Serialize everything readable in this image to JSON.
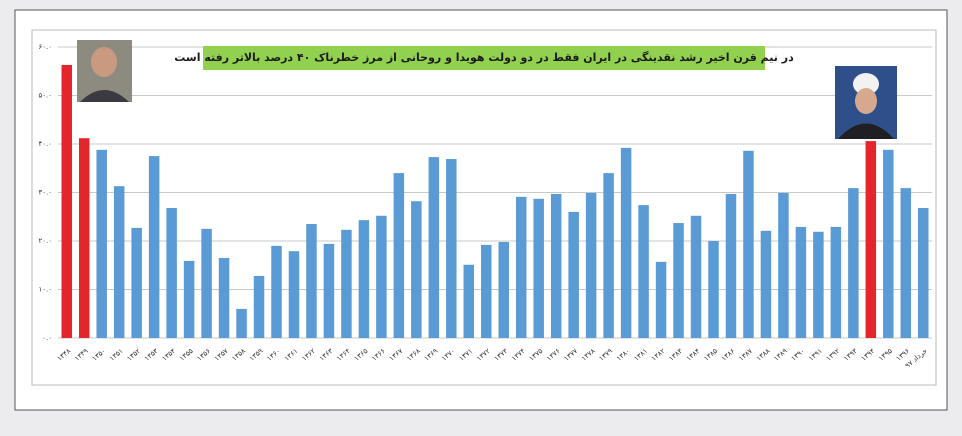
{
  "chart_data": {
    "type": "bar",
    "title": "در نیم قرن اخیر رشد نقدینگی در ایران فقط در دو دولت هویدا و روحانی از مرز خطرناک ۴۰ درصد بالاتر رفته است",
    "categories": [
      "۱۳۴۸",
      "۱۳۴۹",
      "۱۳۵۰",
      "۱۳۵۱",
      "۱۳۵۲",
      "۱۳۵۳",
      "۱۳۵۴",
      "۱۳۵۵",
      "۱۳۵۶",
      "۱۳۵۷",
      "۱۳۵۸",
      "۱۳۵۹",
      "۱۳۶۰",
      "۱۳۶۱",
      "۱۳۶۲",
      "۱۳۶۳",
      "۱۳۶۴",
      "۱۳۶۵",
      "۱۳۶۶",
      "۱۳۶۷",
      "۱۳۶۸",
      "۱۳۶۹",
      "۱۳۷۰",
      "۱۳۷۱",
      "۱۳۷۲",
      "۱۳۷۳",
      "۱۳۷۴",
      "۱۳۷۵",
      "۱۳۷۶",
      "۱۳۷۷",
      "۱۳۷۸",
      "۱۳۷۹",
      "۱۳۸۰",
      "۱۳۸۱",
      "۱۳۸۲",
      "۱۳۸۳",
      "۱۳۸۴",
      "۱۳۸۵",
      "۱۳۸۶",
      "۱۳۸۷",
      "۱۳۸۸",
      "۱۳۸۹",
      "۱۳۹۰",
      "۱۳۹۱",
      "۱۳۹۲",
      "۱۳۹۳",
      "۱۳۹۴",
      "۱۳۹۵",
      "۱۳۹۶",
      "خرداد ۹۷"
    ],
    "values": [
      56.3,
      41.2,
      38.8,
      31.3,
      22.7,
      37.5,
      26.8,
      15.9,
      22.5,
      16.5,
      6.0,
      12.8,
      19.0,
      17.9,
      23.5,
      19.4,
      22.3,
      24.3,
      25.2,
      34.0,
      28.2,
      37.3,
      36.9,
      15.1,
      19.2,
      19.8,
      29.1,
      28.7,
      29.7,
      26.0,
      29.9,
      34.0,
      39.2,
      27.4,
      15.7,
      23.7,
      25.2,
      20.0,
      29.7,
      38.6,
      22.1,
      29.9,
      22.9,
      21.9,
      22.9,
      30.9,
      40.6,
      38.8,
      30.9,
      26.8
    ],
    "colors": [
      "#e3262b",
      "#e3262b",
      "#5b9bd5",
      "#5b9bd5",
      "#5b9bd5",
      "#5b9bd5",
      "#5b9bd5",
      "#5b9bd5",
      "#5b9bd5",
      "#5b9bd5",
      "#5b9bd5",
      "#5b9bd5",
      "#5b9bd5",
      "#5b9bd5",
      "#5b9bd5",
      "#5b9bd5",
      "#5b9bd5",
      "#5b9bd5",
      "#5b9bd5",
      "#5b9bd5",
      "#5b9bd5",
      "#5b9bd5",
      "#5b9bd5",
      "#5b9bd5",
      "#5b9bd5",
      "#5b9bd5",
      "#5b9bd5",
      "#5b9bd5",
      "#5b9bd5",
      "#5b9bd5",
      "#5b9bd5",
      "#5b9bd5",
      "#5b9bd5",
      "#5b9bd5",
      "#5b9bd5",
      "#5b9bd5",
      "#5b9bd5",
      "#5b9bd5",
      "#5b9bd5",
      "#5b9bd5",
      "#5b9bd5",
      "#5b9bd5",
      "#5b9bd5",
      "#5b9bd5",
      "#5b9bd5",
      "#5b9bd5",
      "#e3262b",
      "#5b9bd5",
      "#5b9bd5",
      "#5b9bd5"
    ],
    "ylim": [
      0,
      60
    ],
    "yticks": [
      {
        "value": 0,
        "label": "۰.۰"
      },
      {
        "value": 10,
        "label": "۱۰.۰"
      },
      {
        "value": 20,
        "label": "۲۰.۰"
      },
      {
        "value": 30,
        "label": "۳۰.۰"
      },
      {
        "value": 40,
        "label": "۴۰.۰"
      },
      {
        "value": 50,
        "label": "۵۰.۰"
      },
      {
        "value": 60,
        "label": "۶۰.۰"
      }
    ],
    "grid": true
  }
}
